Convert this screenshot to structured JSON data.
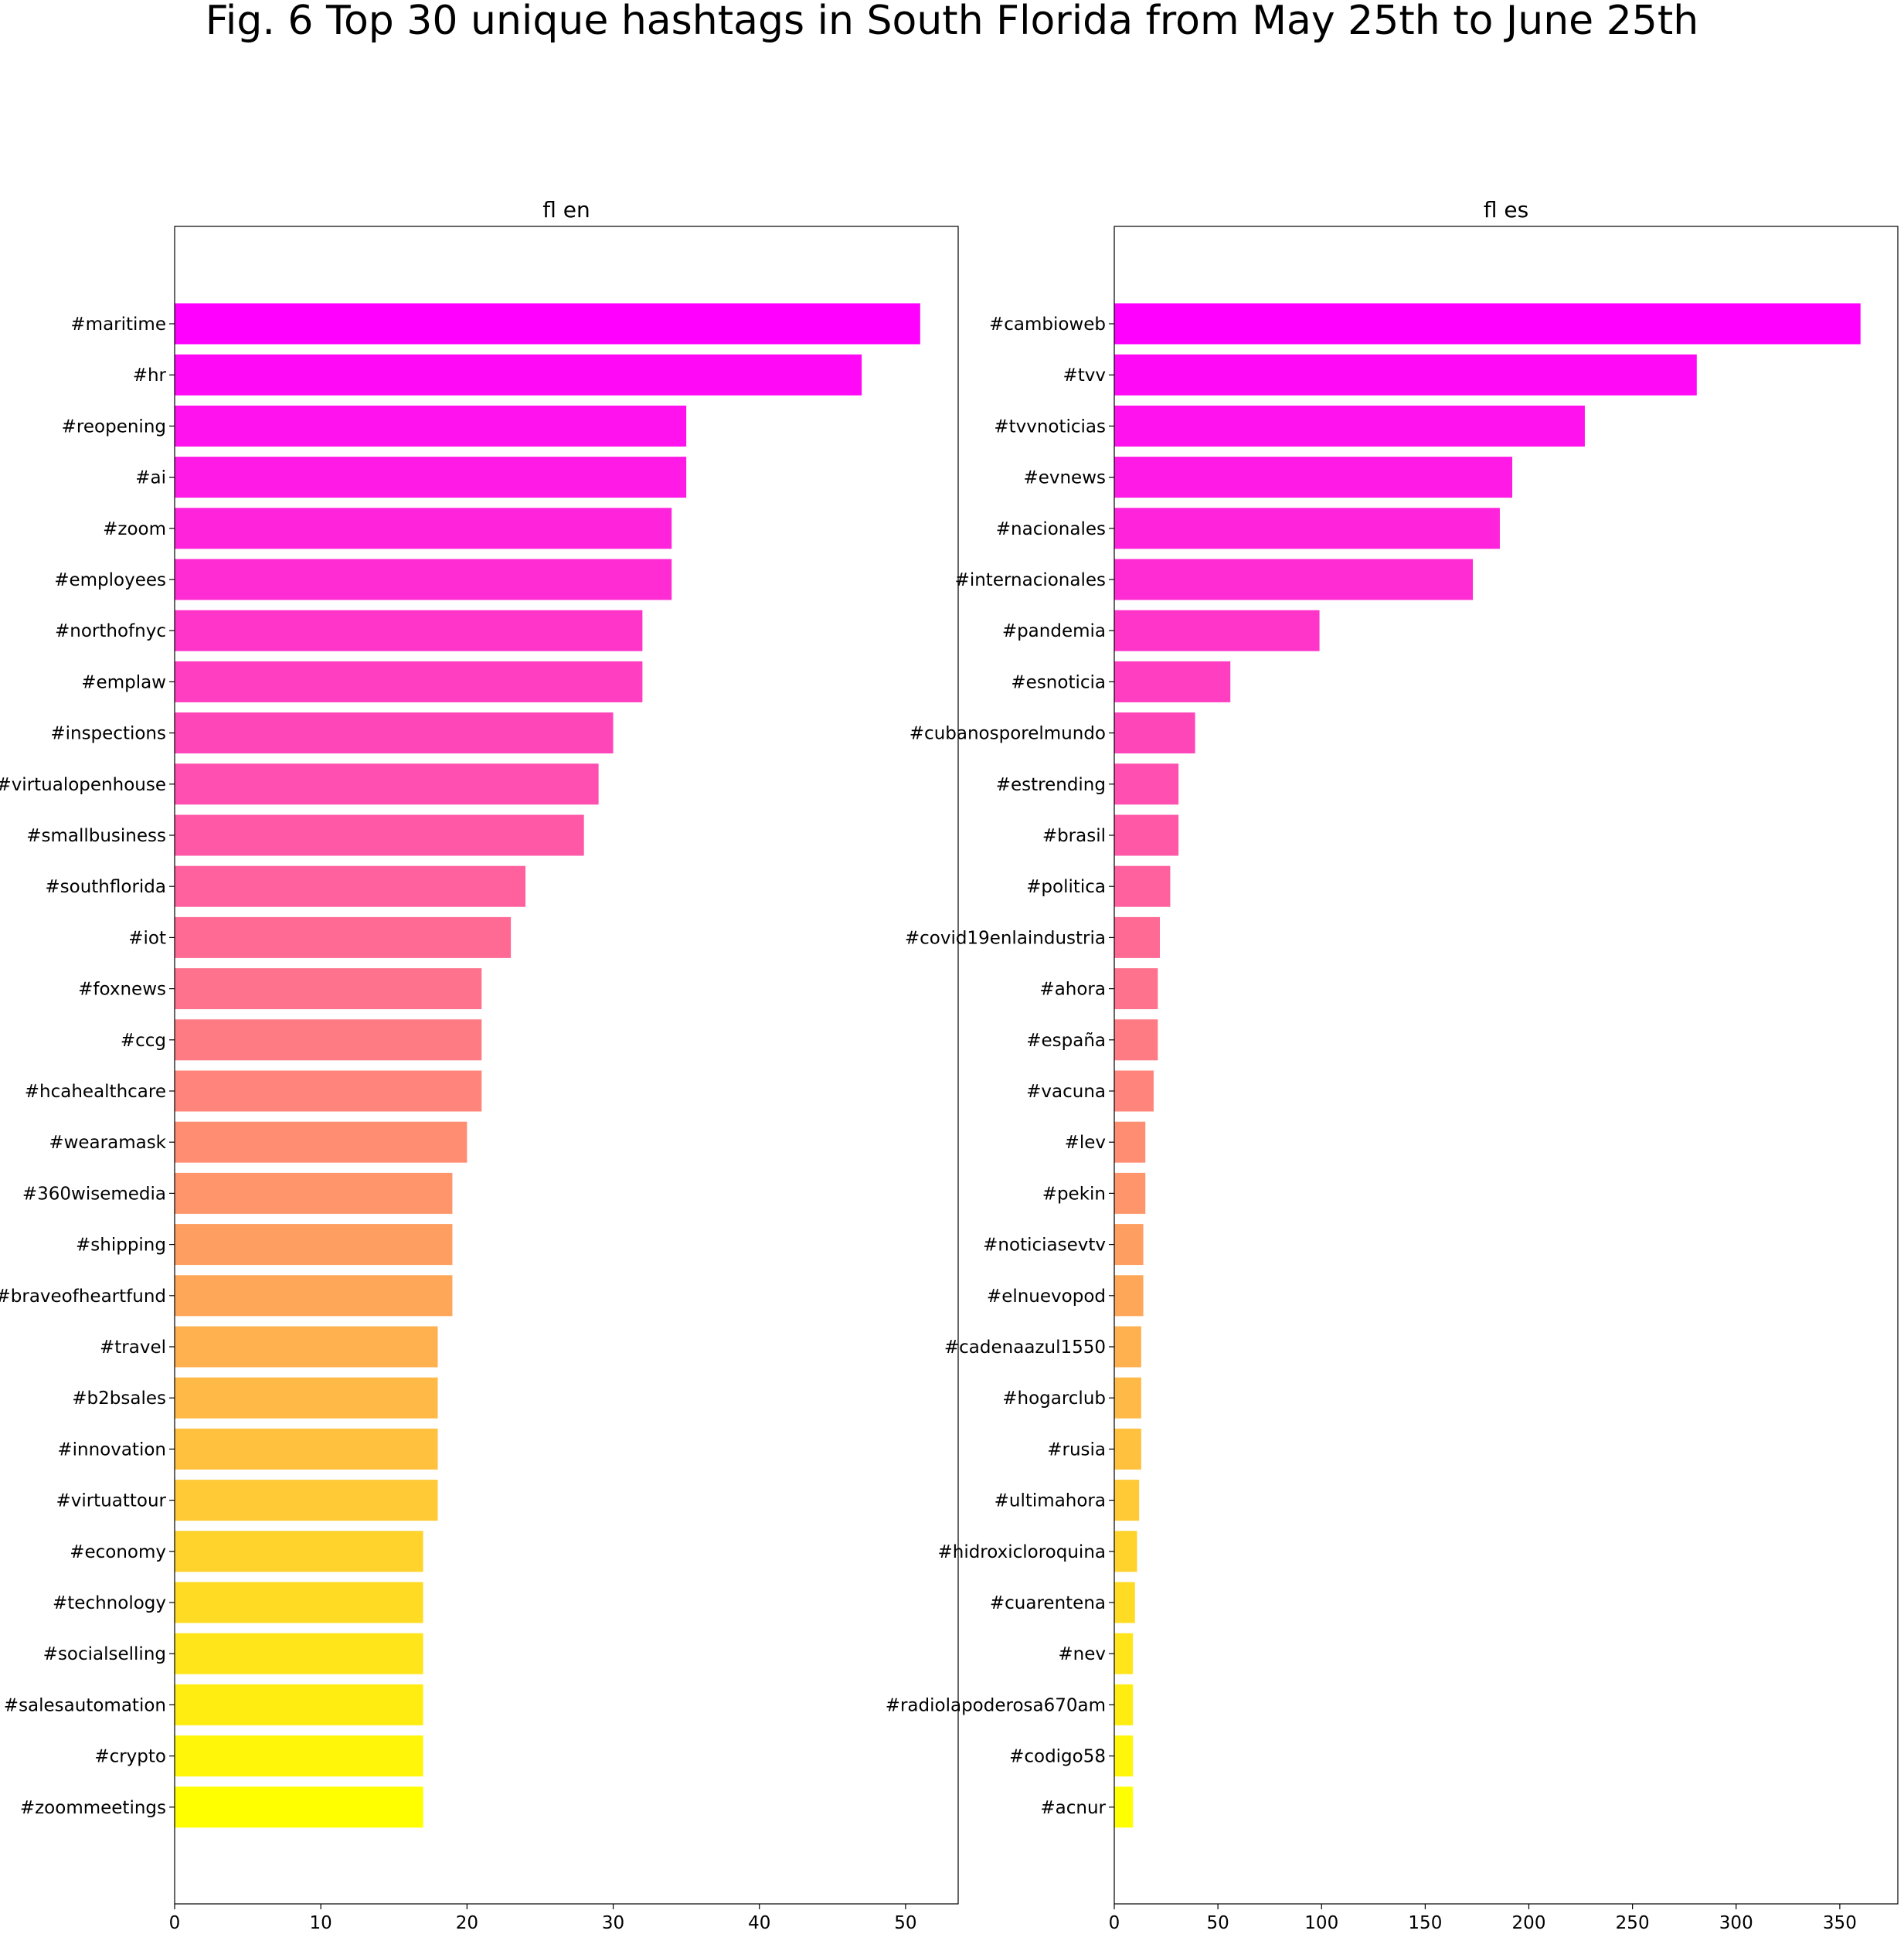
{
  "figure": {
    "title": "Fig. 6 Top 30 unique hashtags in South Florida from May 25th to June 25th"
  },
  "chart_data": [
    {
      "type": "bar",
      "orientation": "horizontal",
      "title": "fl en",
      "xlabel": "",
      "ylabel": "",
      "xlim": [
        0,
        53.6
      ],
      "xticks": [
        0,
        10,
        20,
        30,
        40,
        50
      ],
      "grid": false,
      "color_gradient": {
        "from": "#ff00ff",
        "to": "#ffff00"
      },
      "categories": [
        "#maritime",
        "#hr",
        "#reopening",
        "#ai",
        "#zoom",
        "#employees",
        "#northofnyc",
        "#emplaw",
        "#inspections",
        "#virtualopenhouse",
        "#smallbusiness",
        "#southflorida",
        "#iot",
        "#foxnews",
        "#ccg",
        "#hcahealthcare",
        "#wearamask",
        "#360wisemedia",
        "#shipping",
        "#braveofheartfund",
        "#travel",
        "#b2bsales",
        "#innovation",
        "#virtuattour",
        "#economy",
        "#technology",
        "#socialselling",
        "#salesautomation",
        "#crypto",
        "#zoommeetings"
      ],
      "values": [
        51,
        47,
        35,
        35,
        34,
        34,
        32,
        32,
        30,
        29,
        28,
        24,
        23,
        21,
        21,
        21,
        20,
        19,
        19,
        19,
        18,
        18,
        18,
        18,
        17,
        17,
        17,
        17,
        17,
        17
      ]
    },
    {
      "type": "bar",
      "orientation": "horizontal",
      "title": "fl es",
      "xlabel": "",
      "ylabel": "",
      "xlim": [
        0,
        378
      ],
      "xticks": [
        0,
        50,
        100,
        150,
        200,
        250,
        300,
        350
      ],
      "grid": false,
      "color_gradient": {
        "from": "#ff00ff",
        "to": "#ffff00"
      },
      "categories": [
        "#cambioweb",
        "#tvv",
        "#tvvnoticias",
        "#evnews",
        "#nacionales",
        "#internacionales",
        "#pandemia",
        "#esnoticia",
        "#cubanosporelmundo",
        "#estrending",
        "#brasil",
        "#politica",
        "#covid19enlaindustria",
        "#ahora",
        "#españa",
        "#vacuna",
        "#lev",
        "#pekin",
        "#noticiasevtv",
        "#elnuevopod",
        "#cadenaazul1550",
        "#hogarclub",
        "#rusia",
        "#ultimahora",
        "#hidroxicloroquina",
        "#cuarentena",
        "#nev",
        "#radiolapoderosa670am",
        "#codigo58",
        "#acnur"
      ],
      "values": [
        360,
        281,
        227,
        192,
        186,
        173,
        99,
        56,
        39,
        31,
        31,
        27,
        22,
        21,
        21,
        19,
        15,
        15,
        14,
        14,
        13,
        13,
        13,
        12,
        11,
        10,
        9,
        9,
        9,
        9
      ]
    }
  ]
}
